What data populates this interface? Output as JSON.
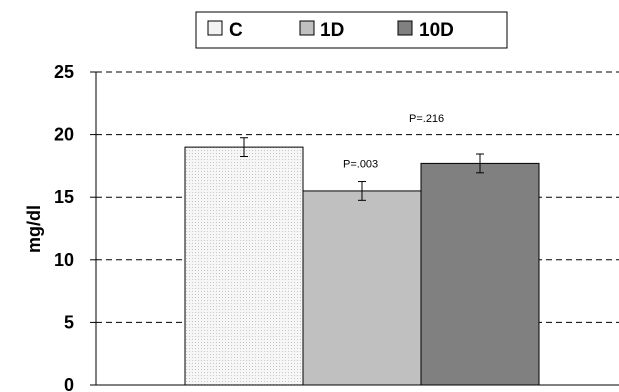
{
  "chart_data": {
    "type": "bar",
    "title": "",
    "xlabel": "",
    "ylabel": "mg/dl",
    "ylim": [
      0,
      25
    ],
    "yticks": [
      "0",
      "5",
      "10",
      "15",
      "20",
      "25"
    ],
    "grid": "horizontal dashed",
    "legend_position": "top-center",
    "categories": [
      "C",
      "1D",
      "10D"
    ],
    "series": [
      {
        "name": "C",
        "value": 19.0,
        "error": 0.75,
        "color": "#f2f2f2",
        "pattern": "dotted"
      },
      {
        "name": "1D",
        "value": 15.5,
        "error": 0.75,
        "color": "#c0c0c0"
      },
      {
        "name": "10D",
        "value": 17.7,
        "error": 0.75,
        "color": "#808080"
      }
    ],
    "annotations": [
      {
        "text": "P=.003",
        "series": "1D"
      },
      {
        "text": "P=.216",
        "series": "10D"
      }
    ]
  }
}
